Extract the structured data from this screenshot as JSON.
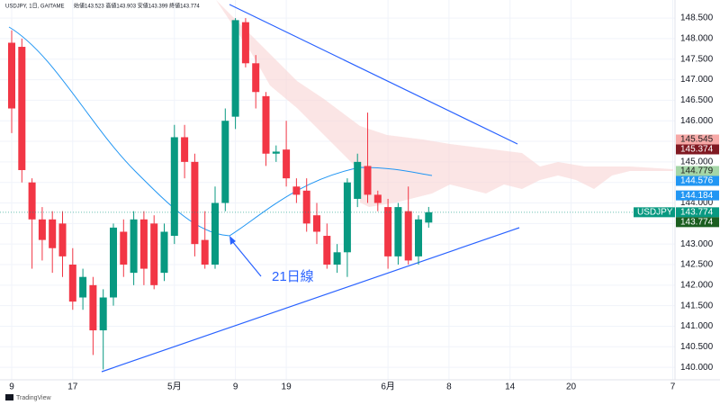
{
  "header": {
    "symbol": "USDJPY, 1日, GAITAME",
    "ohlc_text": "始値143.523 高値143.903 安値143.399 終値143.774"
  },
  "chart_data": {
    "type": "candlestick",
    "categories": [
      "9",
      null,
      null,
      null,
      null,
      null,
      "17",
      null,
      null,
      null,
      null,
      null,
      null,
      null,
      null,
      null,
      "5月",
      null,
      null,
      null,
      null,
      null,
      "9",
      null,
      null,
      null,
      null,
      "19",
      null,
      null,
      null,
      null,
      null,
      null,
      null,
      null,
      null,
      "6月",
      null,
      null,
      null,
      null,
      null,
      "8",
      null,
      null,
      null,
      null,
      null,
      "14",
      null,
      null,
      null,
      null,
      null,
      "20",
      null,
      null,
      null,
      null,
      null,
      null,
      null,
      null,
      null,
      "7"
    ],
    "open": [
      147.9,
      147.8,
      144.5,
      143.6,
      143.6,
      143.5,
      142.5,
      141.7,
      142.0,
      140.9,
      141.7,
      143.3,
      142.3,
      143.6,
      143.5,
      142.3,
      143.2,
      145.6,
      145.0,
      143.1,
      142.5,
      144.0,
      146.1,
      148.4,
      147.4,
      146.6,
      145.2,
      145.3,
      144.4,
      144.3,
      143.7,
      143.2,
      142.5,
      142.8,
      144.1,
      144.9,
      144.2,
      143.9,
      142.7,
      143.8,
      142.7,
      143.523,
      null,
      null,
      null,
      null,
      null,
      null,
      null,
      null,
      null,
      null,
      null,
      null,
      null,
      null,
      null,
      null,
      null,
      null,
      null,
      null,
      null,
      null,
      null,
      null
    ],
    "high": [
      148.2,
      148.0,
      144.6,
      143.9,
      143.8,
      143.8,
      142.9,
      142.4,
      142.2,
      141.9,
      143.5,
      143.6,
      143.8,
      143.8,
      143.7,
      143.5,
      145.9,
      145.9,
      145.2,
      143.8,
      144.4,
      146.3,
      148.5,
      148.5,
      147.6,
      146.7,
      145.4,
      146.0,
      144.6,
      144.6,
      144.0,
      143.5,
      143.0,
      144.6,
      145.2,
      146.2,
      144.3,
      144.1,
      144.0,
      144.4,
      143.7,
      143.903,
      null,
      null,
      null,
      null,
      null,
      null,
      null,
      null,
      null,
      null,
      null,
      null,
      null,
      null,
      null,
      null,
      null,
      null,
      null,
      null,
      null,
      null,
      null,
      null
    ],
    "low": [
      145.7,
      144.5,
      142.4,
      142.6,
      142.3,
      142.2,
      141.4,
      141.4,
      140.3,
      139.95,
      141.5,
      142.2,
      142.0,
      142.0,
      141.9,
      142.1,
      143.0,
      144.6,
      142.7,
      142.4,
      142.4,
      143.8,
      145.8,
      147.3,
      146.3,
      144.9,
      145.0,
      144.4,
      144.0,
      143.3,
      143.0,
      142.4,
      142.3,
      142.2,
      143.9,
      144.0,
      143.8,
      142.4,
      142.5,
      142.5,
      142.5,
      143.399,
      null,
      null,
      null,
      null,
      null,
      null,
      null,
      null,
      null,
      null,
      null,
      null,
      null,
      null,
      null,
      null,
      null,
      null,
      null,
      null,
      null,
      null,
      null,
      null
    ],
    "close": [
      146.3,
      144.8,
      143.6,
      143.1,
      142.9,
      142.7,
      141.6,
      142.2,
      140.9,
      141.7,
      143.4,
      142.5,
      143.6,
      142.4,
      142.0,
      143.3,
      145.6,
      145.0,
      143.0,
      142.5,
      144.0,
      146.0,
      148.45,
      147.4,
      146.7,
      145.2,
      145.25,
      144.6,
      144.2,
      143.5,
      143.3,
      142.5,
      142.8,
      144.5,
      145.0,
      144.2,
      144.0,
      142.7,
      143.9,
      142.6,
      143.6,
      143.774,
      null,
      null,
      null,
      null,
      null,
      null,
      null,
      null,
      null,
      null,
      null,
      null,
      null,
      null,
      null,
      null,
      null,
      null,
      null,
      null,
      null,
      null,
      null,
      null
    ],
    "up_color": "#089981",
    "down_color": "#f23645",
    "ylim": [
      139.74,
      148.94
    ],
    "yticks": [
      {
        "value": 140,
        "label": "140.000"
      },
      {
        "value": 140.5,
        "label": "140.500"
      },
      {
        "value": 141,
        "label": "141.000"
      },
      {
        "value": 141.5,
        "label": "141.500"
      },
      {
        "value": 142,
        "label": "142.000"
      },
      {
        "value": 142.5,
        "label": "142.500"
      },
      {
        "value": 143,
        "label": "143.000"
      },
      {
        "value": 143.5,
        "label": "143.500"
      },
      {
        "value": 144,
        "label": "144.000"
      },
      {
        "value": 144.5,
        "label": "144.500"
      },
      {
        "value": 145,
        "label": "145.000"
      },
      {
        "value": 145.5,
        "label": "145.500"
      },
      {
        "value": 146,
        "label": "146.000"
      },
      {
        "value": 146.5,
        "label": "146.500"
      },
      {
        "value": 147,
        "label": "147.000"
      },
      {
        "value": 147.5,
        "label": "147.500"
      },
      {
        "value": 148,
        "label": "148.000"
      },
      {
        "value": 148.5,
        "label": "148.500"
      }
    ],
    "grid": true,
    "price_tags": [
      {
        "value": 145.545,
        "color": "#f7a9a7",
        "text_color": "#222"
      },
      {
        "value": 145.374,
        "color": "#801922",
        "text_color": "#fff"
      },
      {
        "value": 144.779,
        "color": "#a5d6a7",
        "text_color": "#222"
      },
      {
        "value": 144.576,
        "color": "#2196f3",
        "text_color": "#fff"
      },
      {
        "value": 144.184,
        "color": "#2196f3",
        "text_color": "#fff"
      },
      {
        "value": 143.774,
        "color": "#089981",
        "text_color": "#fff"
      },
      {
        "value": 143.774,
        "color": "#1b5e20",
        "text_color": "#fff"
      }
    ],
    "symbol_tag": "USDJPY",
    "annotation": "21日線"
  },
  "branding": "TradingView"
}
